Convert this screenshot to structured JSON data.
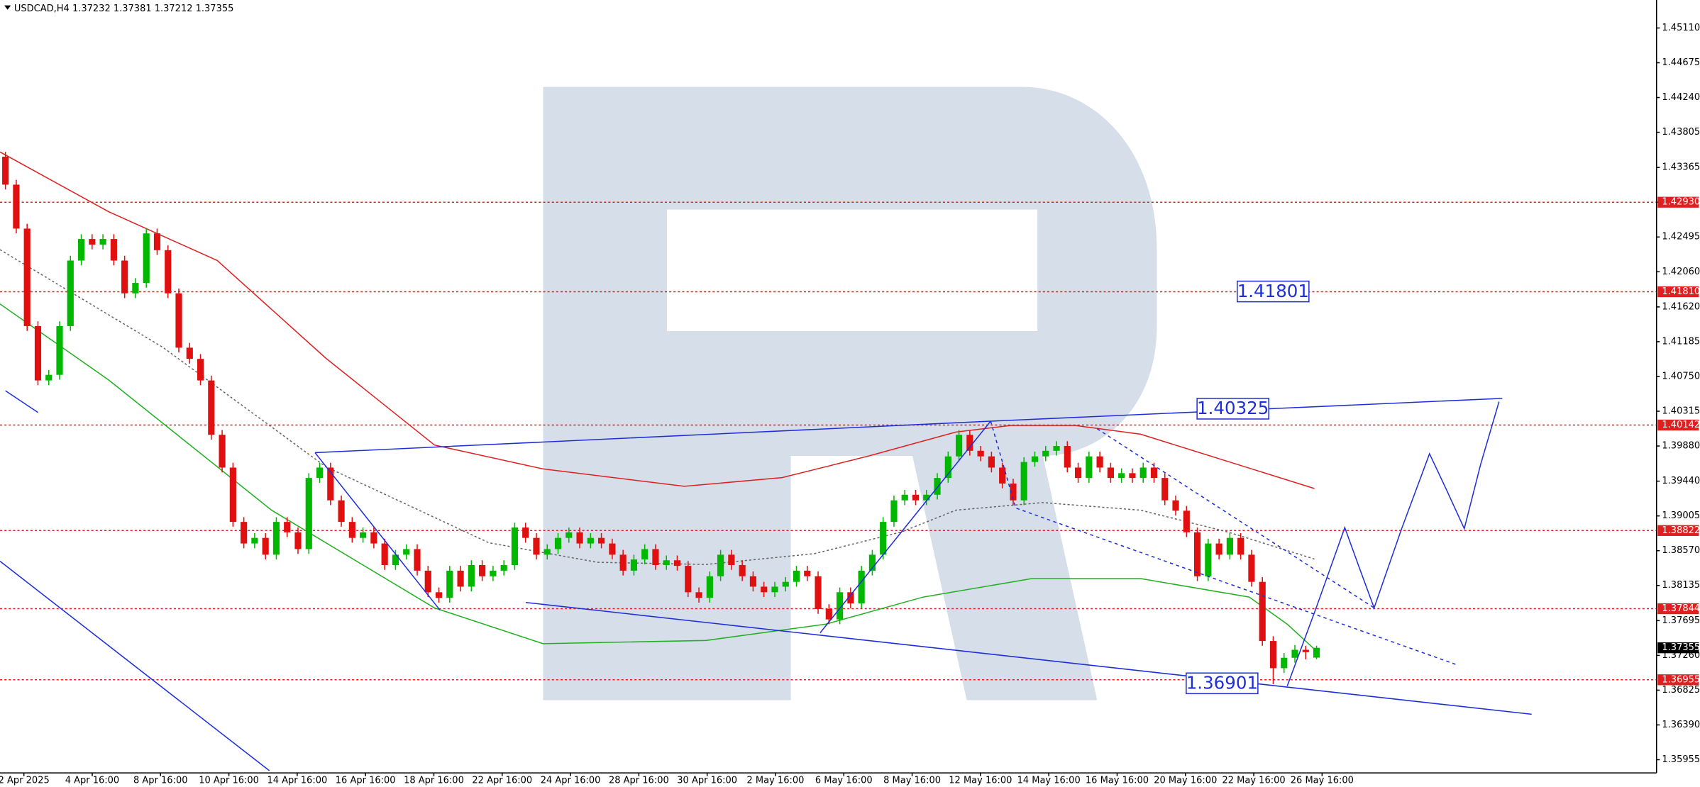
{
  "chart_data": {
    "type": "candlestick",
    "title": "USDCAD,H4  1.37232 1.37381 1.37212 1.37355",
    "ylim": [
      1.3579,
      1.4546
    ],
    "yticks": [
      {
        "value": 1.4511,
        "label": "1.45110"
      },
      1.44675,
      {
        "value": 1.4424,
        "label": "1.44240"
      },
      {
        "value": 1.43805,
        "label": "1.43805"
      },
      1.43365,
      {
        "value": 1.4293,
        "label": "1.42930"
      },
      1.42495,
      {
        "value": 1.4206,
        "label": "1.42060"
      },
      {
        "value": 1.4162,
        "label": "1.41620"
      },
      1.41185,
      {
        "value": 1.4075,
        "label": "1.40750"
      },
      1.40315,
      {
        "value": 1.3988,
        "label": "1.39880"
      },
      {
        "value": 1.3944,
        "label": "1.39440"
      },
      1.39005,
      {
        "value": 1.3857,
        "label": "1.38570"
      },
      1.38135,
      1.37695,
      {
        "value": 1.3726,
        "label": "1.37260"
      },
      1.36825,
      {
        "value": 1.3639,
        "label": "1.36390"
      },
      1.35955
    ],
    "levels": [
      {
        "value": 1.4293,
        "label": "1.42930"
      },
      {
        "value": 1.4181,
        "label": "1.41810"
      },
      1.40142,
      1.38822,
      1.37844,
      1.36955
    ],
    "level_color": "#e02020",
    "current_price": 1.37355,
    "annotations": [
      "1.41801",
      "1.40325",
      "1.36901"
    ],
    "x_labels": [
      "2 Apr 2025",
      "4 Apr 16:00",
      "8 Apr 16:00",
      "10 Apr 16:00",
      "14 Apr 16:00",
      "16 Apr 16:00",
      "18 Apr 16:00",
      "22 Apr 16:00",
      "24 Apr 16:00",
      "28 Apr 16:00",
      "30 Apr 16:00",
      "2 May 16:00",
      "6 May 16:00",
      "8 May 16:00",
      "12 May 16:00",
      "14 May 16:00",
      "16 May 16:00",
      "20 May 16:00",
      "22 May 16:00",
      "26 May 16:00"
    ],
    "up_color": "#00b800",
    "down_color": "#e01010",
    "candles": [
      [
        1.435,
        1.4356,
        1.4309,
        1.4315
      ],
      [
        1.4315,
        1.4321,
        1.4254,
        1.426
      ],
      [
        1.426,
        1.4266,
        1.4132,
        1.4138
      ],
      [
        1.4138,
        1.4144,
        1.4064,
        1.407
      ],
      [
        1.407,
        1.4083,
        1.4064,
        1.4077
      ],
      [
        1.4077,
        1.4144,
        1.4071,
        1.4138
      ],
      [
        1.4138,
        1.4226,
        1.4132,
        1.422
      ],
      [
        1.422,
        1.4253,
        1.4214,
        1.4247
      ],
      [
        1.4247,
        1.4253,
        1.4234,
        1.424
      ],
      [
        1.424,
        1.4253,
        1.4234,
        1.4247
      ],
      [
        1.4247,
        1.4253,
        1.4214,
        1.422
      ],
      [
        1.422,
        1.4226,
        1.4173,
        1.4179
      ],
      [
        1.4179,
        1.4198,
        1.4173,
        1.4192
      ],
      [
        1.4192,
        1.426,
        1.4186,
        1.4254
      ],
      [
        1.4254,
        1.426,
        1.4227,
        1.4233
      ],
      [
        1.4233,
        1.4239,
        1.4173,
        1.4179
      ],
      [
        1.4179,
        1.4185,
        1.4105,
        1.4111
      ],
      [
        1.4111,
        1.4117,
        1.4091,
        1.4097
      ],
      [
        1.4097,
        1.4103,
        1.4064,
        1.407
      ],
      [
        1.407,
        1.4076,
        1.3996,
        1.4002
      ],
      [
        1.4002,
        1.4008,
        1.3955,
        1.3961
      ],
      [
        1.3961,
        1.3967,
        1.3887,
        1.3893
      ],
      [
        1.3893,
        1.3899,
        1.386,
        1.3866
      ],
      [
        1.3866,
        1.3879,
        1.386,
        1.3873
      ],
      [
        1.3873,
        1.3879,
        1.3846,
        1.3852
      ],
      [
        1.3852,
        1.3899,
        1.3846,
        1.3893
      ],
      [
        1.3893,
        1.3899,
        1.3874,
        1.388
      ],
      [
        1.388,
        1.3886,
        1.3853,
        1.3859
      ],
      [
        1.3859,
        1.3954,
        1.3853,
        1.3948
      ],
      [
        1.3948,
        1.3967,
        1.3942,
        1.3961
      ],
      [
        1.3961,
        1.3967,
        1.3914,
        1.392
      ],
      [
        1.392,
        1.3926,
        1.3887,
        1.3893
      ],
      [
        1.3893,
        1.3899,
        1.3867,
        1.3873
      ],
      [
        1.3873,
        1.3886,
        1.3867,
        1.388
      ],
      [
        1.388,
        1.3886,
        1.386,
        1.3866
      ],
      [
        1.3866,
        1.3872,
        1.3833,
        1.3839
      ],
      [
        1.3839,
        1.3858,
        1.3833,
        1.3852
      ],
      [
        1.3852,
        1.3865,
        1.3846,
        1.3859
      ],
      [
        1.3859,
        1.3865,
        1.3826,
        1.3832
      ],
      [
        1.3832,
        1.3838,
        1.3799,
        1.3805
      ],
      [
        1.3805,
        1.3811,
        1.3792,
        1.3798
      ],
      [
        1.3798,
        1.3838,
        1.3792,
        1.3832
      ],
      [
        1.3832,
        1.3838,
        1.3806,
        1.3812
      ],
      [
        1.3812,
        1.3845,
        1.3806,
        1.3839
      ],
      [
        1.3839,
        1.3845,
        1.3819,
        1.3825
      ],
      [
        1.3825,
        1.3838,
        1.3819,
        1.3832
      ],
      [
        1.3832,
        1.3845,
        1.3826,
        1.3839
      ],
      [
        1.3839,
        1.3892,
        1.3833,
        1.3886
      ],
      [
        1.3886,
        1.3892,
        1.3867,
        1.3873
      ],
      [
        1.3873,
        1.3879,
        1.3846,
        1.3852
      ],
      [
        1.3852,
        1.3865,
        1.3846,
        1.3859
      ],
      [
        1.3859,
        1.3879,
        1.3853,
        1.3873
      ],
      [
        1.3873,
        1.3886,
        1.3867,
        1.388
      ],
      [
        1.388,
        1.3886,
        1.386,
        1.3866
      ],
      [
        1.3866,
        1.3879,
        1.386,
        1.3873
      ],
      [
        1.3873,
        1.3879,
        1.386,
        1.3866
      ],
      [
        1.3866,
        1.3872,
        1.3846,
        1.3852
      ],
      [
        1.3852,
        1.3858,
        1.3826,
        1.3832
      ],
      [
        1.3832,
        1.3852,
        1.3826,
        1.3846
      ],
      [
        1.3846,
        1.3865,
        1.384,
        1.3859
      ],
      [
        1.3859,
        1.3865,
        1.3833,
        1.3839
      ],
      [
        1.3839,
        1.3851,
        1.3833,
        1.3845
      ],
      [
        1.3845,
        1.3851,
        1.3832,
        1.3838
      ],
      [
        1.3838,
        1.3844,
        1.3799,
        1.3805
      ],
      [
        1.3805,
        1.3811,
        1.3792,
        1.3798
      ],
      [
        1.3798,
        1.3831,
        1.3792,
        1.3825
      ],
      [
        1.3825,
        1.3858,
        1.3819,
        1.3852
      ],
      [
        1.3852,
        1.3858,
        1.3833,
        1.3839
      ],
      [
        1.3839,
        1.3845,
        1.3819,
        1.3825
      ],
      [
        1.3825,
        1.3831,
        1.3806,
        1.3812
      ],
      [
        1.3812,
        1.3818,
        1.3799,
        1.3805
      ],
      [
        1.3805,
        1.3818,
        1.3799,
        1.3812
      ],
      [
        1.3812,
        1.3824,
        1.3806,
        1.3818
      ],
      [
        1.3818,
        1.3838,
        1.3812,
        1.3832
      ],
      [
        1.3832,
        1.3838,
        1.3819,
        1.3825
      ],
      [
        1.3825,
        1.3831,
        1.3778,
        1.3784
      ],
      [
        1.3784,
        1.379,
        1.3765,
        1.3771
      ],
      [
        1.3771,
        1.3811,
        1.3765,
        1.3805
      ],
      [
        1.3805,
        1.3811,
        1.3785,
        1.3791
      ],
      [
        1.3791,
        1.3838,
        1.3785,
        1.3832
      ],
      [
        1.3832,
        1.3858,
        1.3826,
        1.3852
      ],
      [
        1.3852,
        1.3899,
        1.3846,
        1.3893
      ],
      [
        1.3893,
        1.3926,
        1.3887,
        1.392
      ],
      [
        1.392,
        1.3933,
        1.3914,
        1.3927
      ],
      [
        1.3927,
        1.3933,
        1.3914,
        1.392
      ],
      [
        1.392,
        1.3933,
        1.3914,
        1.3927
      ],
      [
        1.3927,
        1.3954,
        1.3921,
        1.3948
      ],
      [
        1.3948,
        1.3981,
        1.3942,
        1.3975
      ],
      [
        1.3975,
        1.4008,
        1.3969,
        1.4002
      ],
      [
        1.4002,
        1.4008,
        1.3976,
        1.3982
      ],
      [
        1.3982,
        1.3988,
        1.3969,
        1.3975
      ],
      [
        1.3975,
        1.3981,
        1.3955,
        1.3961
      ],
      [
        1.3961,
        1.3967,
        1.3935,
        1.3941
      ],
      [
        1.3941,
        1.3947,
        1.3914,
        1.392
      ],
      [
        1.392,
        1.3974,
        1.3914,
        1.3968
      ],
      [
        1.3968,
        1.3981,
        1.3962,
        1.3975
      ],
      [
        1.3975,
        1.3988,
        1.3969,
        1.3982
      ],
      [
        1.3982,
        1.3994,
        1.3976,
        1.3988
      ],
      [
        1.3988,
        1.3994,
        1.3955,
        1.3961
      ],
      [
        1.3961,
        1.3967,
        1.3942,
        1.3948
      ],
      [
        1.3948,
        1.3981,
        1.3942,
        1.3975
      ],
      [
        1.3975,
        1.3981,
        1.3955,
        1.3961
      ],
      [
        1.3961,
        1.3967,
        1.3942,
        1.3948
      ],
      [
        1.3948,
        1.396,
        1.3942,
        1.3954
      ],
      [
        1.3954,
        1.396,
        1.3942,
        1.3948
      ],
      [
        1.3948,
        1.3967,
        1.3942,
        1.3961
      ],
      [
        1.3961,
        1.3967,
        1.3942,
        1.3948
      ],
      [
        1.3948,
        1.3954,
        1.3914,
        1.392
      ],
      [
        1.392,
        1.3926,
        1.3901,
        1.3907
      ],
      [
        1.3907,
        1.3913,
        1.3874,
        1.388
      ],
      [
        1.388,
        1.3886,
        1.3819,
        1.3825
      ],
      [
        1.3825,
        1.3872,
        1.3819,
        1.3866
      ],
      [
        1.3866,
        1.3872,
        1.3846,
        1.3852
      ],
      [
        1.3852,
        1.3879,
        1.3846,
        1.3873
      ],
      [
        1.3873,
        1.3879,
        1.3846,
        1.3852
      ],
      [
        1.3852,
        1.3858,
        1.3812,
        1.3818
      ],
      [
        1.3818,
        1.3824,
        1.3738,
        1.3744
      ],
      [
        1.3744,
        1.375,
        1.369,
        1.371
      ],
      [
        1.371,
        1.3729,
        1.3704,
        1.3723
      ],
      [
        1.3723,
        1.3739,
        1.3717,
        1.3733
      ],
      [
        1.3733,
        1.3738,
        1.3721,
        1.373
      ],
      [
        1.37232,
        1.37381,
        1.37212,
        1.37355
      ]
    ]
  }
}
